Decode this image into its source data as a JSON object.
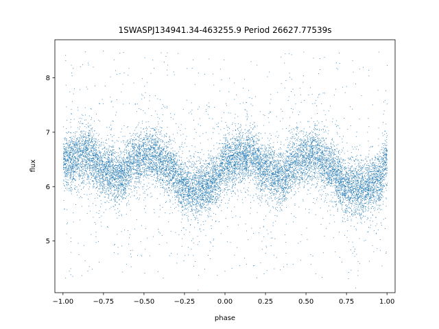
{
  "chart_data": {
    "type": "scatter",
    "title": "1SWASPJ134941.34-463255.9 Period 26627.77539s",
    "xlabel": "phase",
    "ylabel": "flux",
    "xlim": [
      -1.05,
      1.05
    ],
    "ylim": [
      4.05,
      8.7
    ],
    "x_ticks": [
      -1.0,
      -0.75,
      -0.5,
      -0.25,
      0.0,
      0.25,
      0.5,
      0.75,
      1.0
    ],
    "x_tick_labels": [
      "−1.00",
      "−0.75",
      "−0.50",
      "−0.25",
      "0.00",
      "0.25",
      "0.50",
      "0.75",
      "1.00"
    ],
    "y_ticks": [
      5,
      6,
      7,
      8
    ],
    "y_tick_labels": [
      "5",
      "6",
      "7",
      "8"
    ],
    "grid": false,
    "legend": "none",
    "marker_color": "#1f77b4",
    "series": [
      {
        "x_range": [
          -1.0,
          1.0
        ],
        "phase_profile": [
          {
            "x": -1.0,
            "y": 6.45
          },
          {
            "x": -0.9,
            "y": 6.55
          },
          {
            "x": -0.85,
            "y": 6.6
          },
          {
            "x": -0.75,
            "y": 6.3
          },
          {
            "x": -0.65,
            "y": 6.2
          },
          {
            "x": -0.55,
            "y": 6.5
          },
          {
            "x": -0.45,
            "y": 6.6
          },
          {
            "x": -0.35,
            "y": 6.35
          },
          {
            "x": -0.25,
            "y": 6.0
          },
          {
            "x": -0.15,
            "y": 5.95
          },
          {
            "x": -0.05,
            "y": 6.15
          },
          {
            "x": 0.0,
            "y": 6.45
          },
          {
            "x": 0.1,
            "y": 6.55
          },
          {
            "x": 0.15,
            "y": 6.6
          },
          {
            "x": 0.25,
            "y": 6.3
          },
          {
            "x": 0.35,
            "y": 6.2
          },
          {
            "x": 0.45,
            "y": 6.5
          },
          {
            "x": 0.55,
            "y": 6.6
          },
          {
            "x": 0.65,
            "y": 6.35
          },
          {
            "x": 0.75,
            "y": 6.0
          },
          {
            "x": 0.85,
            "y": 5.95
          },
          {
            "x": 0.95,
            "y": 6.15
          },
          {
            "x": 1.0,
            "y": 6.45
          }
        ],
        "band_half_width": 0.45,
        "outlier_range": [
          4.3,
          8.5
        ]
      }
    ]
  }
}
